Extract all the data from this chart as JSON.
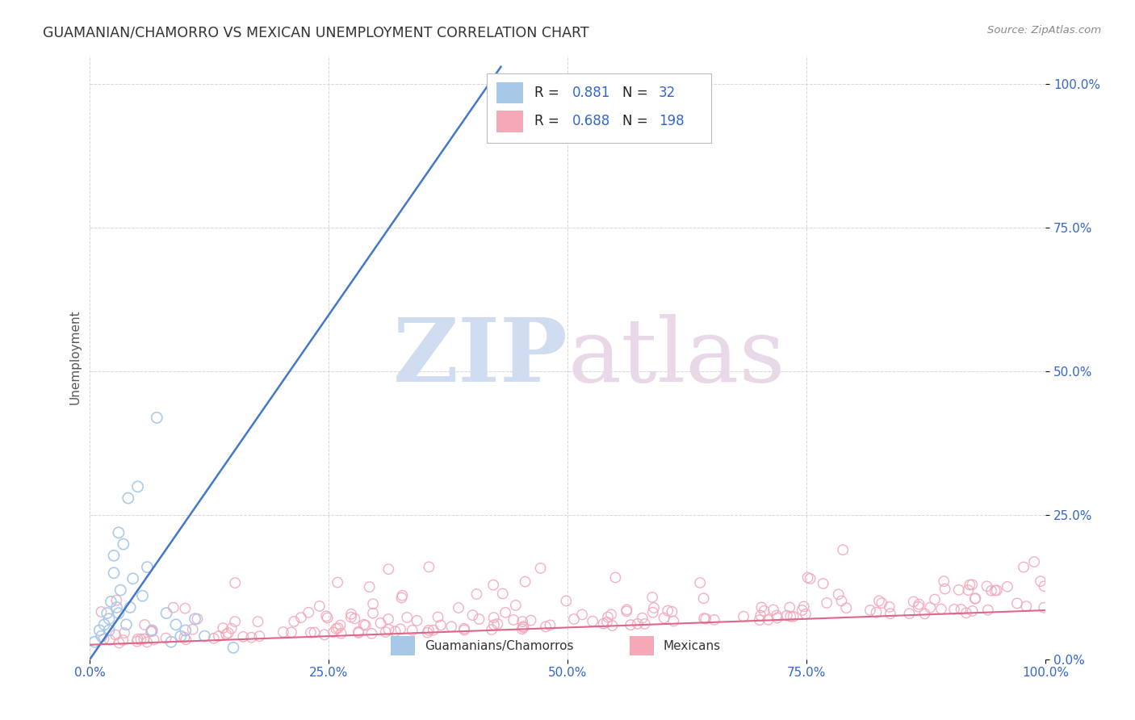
{
  "title": "GUAMANIAN/CHAMORRO VS MEXICAN UNEMPLOYMENT CORRELATION CHART",
  "source": "Source: ZipAtlas.com",
  "ylabel": "Unemployment",
  "ytick_labels": [
    "0.0%",
    "25.0%",
    "50.0%",
    "75.0%",
    "100.0%"
  ],
  "ytick_values": [
    0.0,
    0.25,
    0.5,
    0.75,
    1.0
  ],
  "xtick_labels": [
    "0.0%",
    "25.0%",
    "50.0%",
    "75.0%",
    "100.0%"
  ],
  "xtick_values": [
    0.0,
    0.25,
    0.5,
    0.75,
    1.0
  ],
  "xlim": [
    0.0,
    1.0
  ],
  "ylim": [
    0.0,
    1.05
  ],
  "legend_r1": "R =  0.881",
  "legend_n1": "N =   32",
  "legend_r2": "R =  0.688",
  "legend_n2": "N = 198",
  "blue_fill_color": "#A8C8E8",
  "pink_fill_color": "#F4A8B8",
  "blue_line_color": "#4477CC",
  "pink_line_color": "#DD6688",
  "title_color": "#333333",
  "axis_tick_color": "#3366CC",
  "source_color": "#888888",
  "watermark_zip_color": "#D0DCF0",
  "watermark_atlas_color": "#E8D8E8",
  "background_color": "#FFFFFF",
  "grid_color": "#CCCCCC",
  "legend_text_color_dark": "#333333",
  "legend_text_color_blue": "#3366CC",
  "guam_scatter_x": [
    0.005,
    0.01,
    0.012,
    0.015,
    0.018,
    0.02,
    0.02,
    0.022,
    0.025,
    0.025,
    0.028,
    0.03,
    0.03,
    0.032,
    0.035,
    0.038,
    0.04,
    0.042,
    0.045,
    0.05,
    0.055,
    0.06,
    0.065,
    0.07,
    0.08,
    0.085,
    0.09,
    0.095,
    0.1,
    0.11,
    0.12,
    0.15
  ],
  "guam_scatter_y": [
    0.03,
    0.05,
    0.04,
    0.06,
    0.08,
    0.05,
    0.07,
    0.1,
    0.18,
    0.15,
    0.09,
    0.22,
    0.08,
    0.12,
    0.2,
    0.06,
    0.28,
    0.09,
    0.14,
    0.3,
    0.11,
    0.16,
    0.05,
    0.42,
    0.08,
    0.03,
    0.06,
    0.04,
    0.05,
    0.07,
    0.04,
    0.02
  ],
  "guam_trendline_x": [
    0.0,
    0.43
  ],
  "guam_trendline_y": [
    0.0,
    1.03
  ],
  "mexican_trendline_x": [
    0.0,
    1.0
  ],
  "mexican_trendline_y": [
    0.025,
    0.085
  ]
}
